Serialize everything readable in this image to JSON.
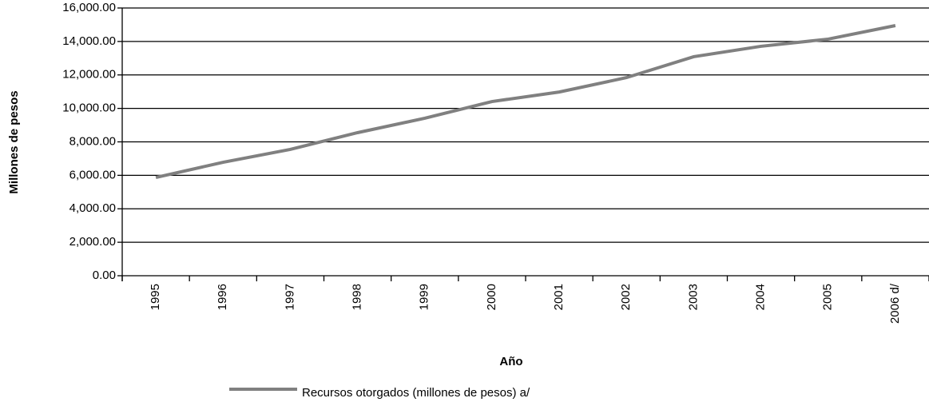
{
  "chart_data": {
    "type": "line",
    "x_label": "Año",
    "y_label": "Millones de pesos",
    "categories": [
      "1995",
      "1996",
      "1997",
      "1998",
      "1999",
      "2000",
      "2001",
      "2002",
      "2003",
      "2004",
      "2005",
      "2006 d/"
    ],
    "series": [
      {
        "name": "Recursos otorgados (millones de pesos) a/",
        "color": "#808080",
        "values": [
          5870,
          6780,
          7550,
          8550,
          9410,
          10410,
          10980,
          11840,
          13090,
          13710,
          14140,
          14950
        ]
      }
    ],
    "ylim": [
      0,
      16000
    ],
    "yticks": [
      {
        "value": 0,
        "label": "0.00"
      },
      {
        "value": 2000,
        "label": "2,000.00"
      },
      {
        "value": 4000,
        "label": "4,000.00"
      },
      {
        "value": 6000,
        "label": "6,000.00"
      },
      {
        "value": 8000,
        "label": "8,000.00"
      },
      {
        "value": 10000,
        "label": "10,000.00"
      },
      {
        "value": 12000,
        "label": "12,000.00"
      },
      {
        "value": 14000,
        "label": "14,000.00"
      },
      {
        "value": 16000,
        "label": "16,000.00"
      }
    ],
    "grid": true,
    "legend": "bottom"
  }
}
